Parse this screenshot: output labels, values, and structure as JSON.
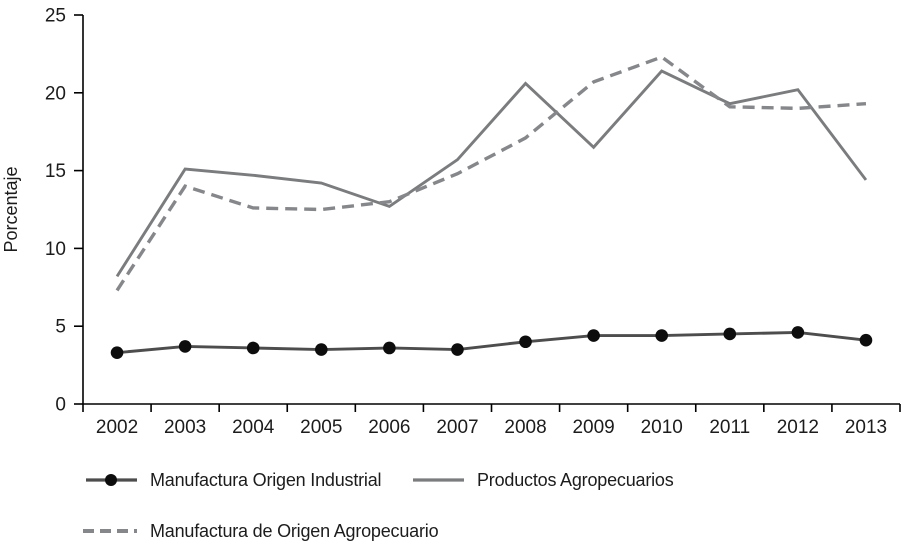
{
  "chart_data": {
    "type": "line",
    "title": "",
    "xlabel": "",
    "ylabel": "Porcentaje",
    "ylim": [
      0,
      25
    ],
    "yticks": [
      0,
      5,
      10,
      15,
      20,
      25
    ],
    "grid": false,
    "legend_position": "bottom",
    "axis_color": "#000000",
    "text_color": "#1c1c1c",
    "categories": [
      "2002",
      "2003",
      "2004",
      "2005",
      "2006",
      "2007",
      "2008",
      "2009",
      "2010",
      "2011",
      "2012",
      "2013"
    ],
    "series": [
      {
        "name": "Manufactura Origen Industrial",
        "color": "#4d4d4d",
        "marker": "circle",
        "marker_color": "#0d0d0d",
        "dash": "",
        "values": [
          3.3,
          3.7,
          3.6,
          3.5,
          3.6,
          3.5,
          4.0,
          4.4,
          4.4,
          4.5,
          4.6,
          4.1
        ]
      },
      {
        "name": "Productos Agropecuarios",
        "color": "#7a7c7e",
        "marker": "",
        "dash": "",
        "values": [
          8.2,
          15.1,
          14.7,
          14.2,
          12.7,
          15.7,
          20.6,
          16.5,
          21.4,
          19.3,
          20.2,
          14.4
        ]
      },
      {
        "name": "Manufactura de Origen Agropecuario",
        "color": "#85878a",
        "marker": "",
        "dash": "12 7",
        "values": [
          7.3,
          14.0,
          12.6,
          12.5,
          13.0,
          14.8,
          17.1,
          20.7,
          22.3,
          19.1,
          19.0,
          19.3
        ]
      }
    ]
  }
}
